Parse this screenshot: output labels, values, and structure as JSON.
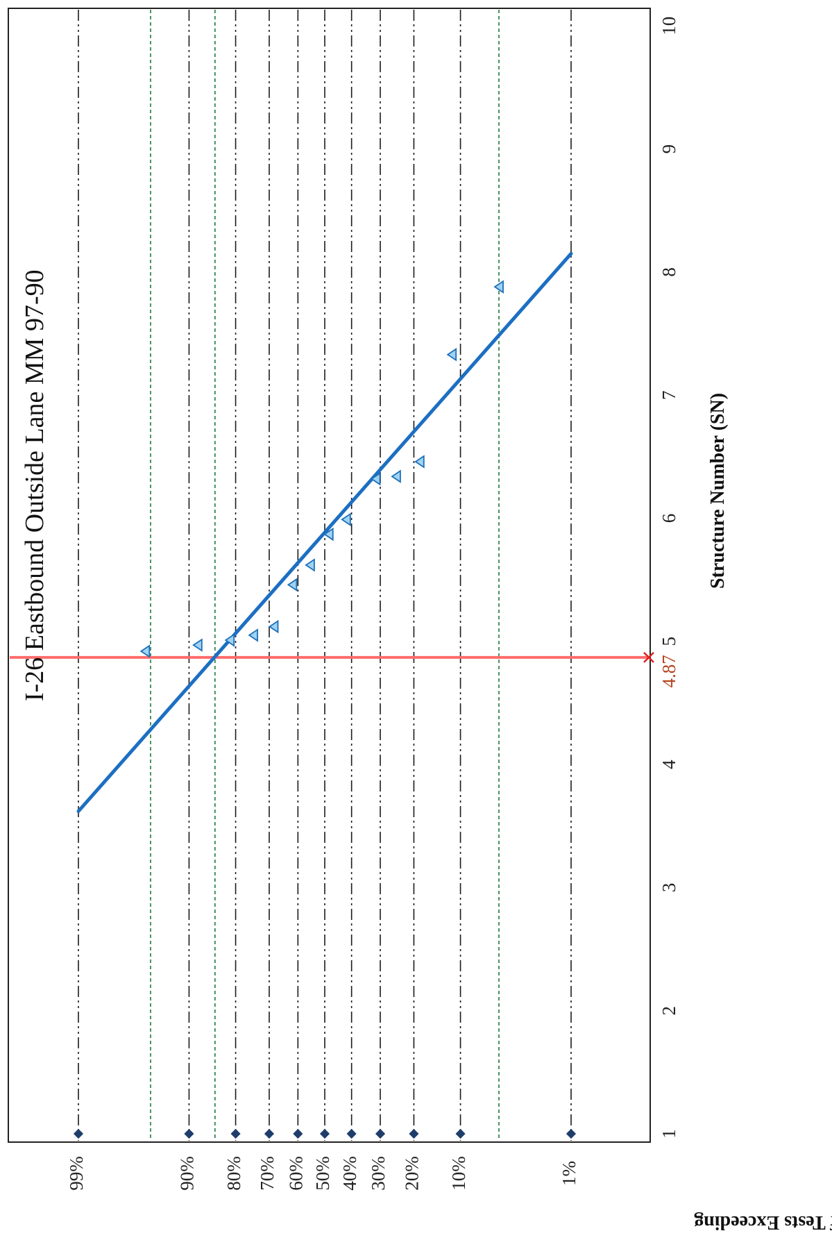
{
  "chart_data": {
    "type": "scatter",
    "orientation": "rotated-90-clockwise",
    "title": "I-26 Eastbound Outside Lane MM 97-90",
    "xlabel": "Structure Number (SN)",
    "ylabel": "Percent of Tests Exceeding",
    "xlim": [
      1,
      10
    ],
    "x_ticks": [
      1,
      2,
      3,
      4,
      5,
      6,
      7,
      8,
      9,
      10
    ],
    "y_ticks": [
      {
        "label": "99%",
        "p": 99
      },
      {
        "label": "90%",
        "p": 90
      },
      {
        "label": "80%",
        "p": 80
      },
      {
        "label": "70%",
        "p": 70
      },
      {
        "label": "60%",
        "p": 60
      },
      {
        "label": "50%",
        "p": 50
      },
      {
        "label": "40%",
        "p": 40
      },
      {
        "label": "30%",
        "p": 30
      },
      {
        "label": "20%",
        "p": 20
      },
      {
        "label": "10%",
        "p": 10
      },
      {
        "label": "1%",
        "p": 1
      }
    ],
    "green_reference_levels": [
      95,
      85,
      5
    ],
    "series": [
      {
        "marker": "triangle",
        "color": "#3a9ad9",
        "points": [
          {
            "x": 4.92,
            "p": 95.5
          },
          {
            "x": 4.97,
            "p": 88.5
          },
          {
            "x": 5.01,
            "p": 81.5
          },
          {
            "x": 5.05,
            "p": 75
          },
          {
            "x": 5.12,
            "p": 68.5
          },
          {
            "x": 5.46,
            "p": 62
          },
          {
            "x": 5.62,
            "p": 55.5
          },
          {
            "x": 5.87,
            "p": 48.5
          },
          {
            "x": 5.99,
            "p": 42
          },
          {
            "x": 6.32,
            "p": 31.5
          },
          {
            "x": 6.34,
            "p": 25
          },
          {
            "x": 6.46,
            "p": 18.5
          },
          {
            "x": 7.33,
            "p": 11.5
          },
          {
            "x": 7.88,
            "p": 5
          }
        ]
      }
    ],
    "fit_line": {
      "color": "#1c6fc2",
      "from": {
        "x": 3.62,
        "p": 99
      },
      "to": {
        "x": 8.15,
        "p": 1
      }
    },
    "marker_line": {
      "x": 4.87,
      "label": "4.87",
      "color": "#ff6b6b"
    },
    "grid": true
  }
}
